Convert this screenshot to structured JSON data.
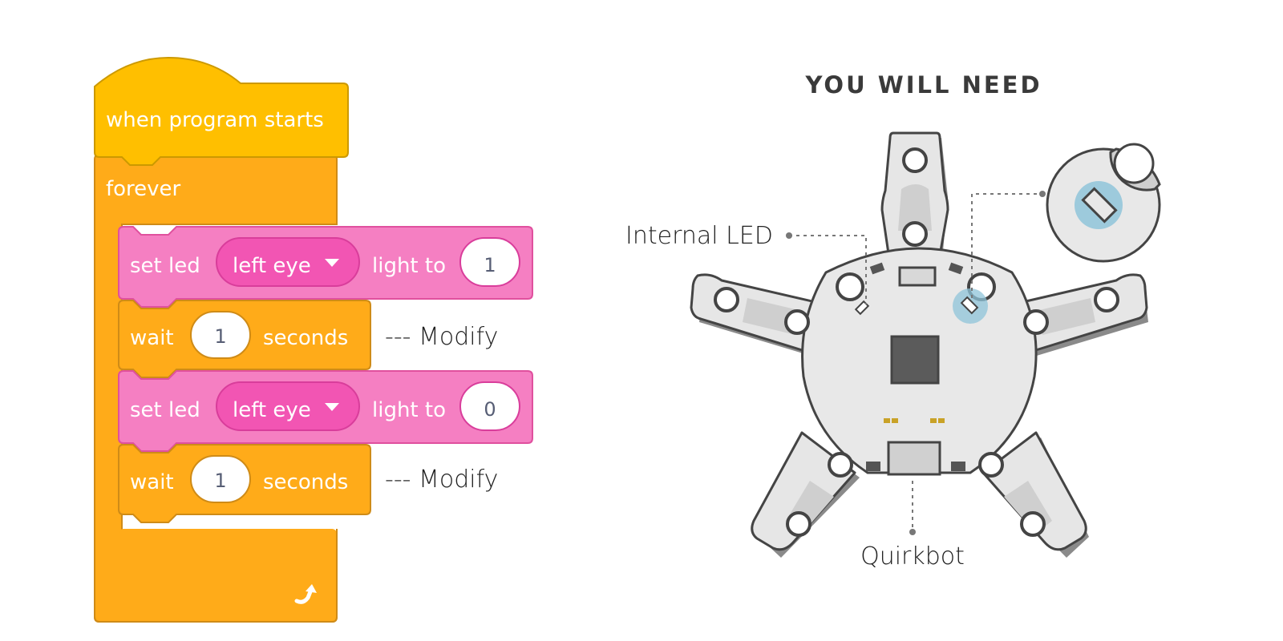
{
  "blocks": {
    "hat": {
      "label": "when program starts",
      "color": "#ffbf00"
    },
    "forever": {
      "label": "forever",
      "color": "#ffab19"
    },
    "set_led_1": {
      "label": "set led",
      "dropdown": "left eye",
      "suffix": "light to",
      "value": "1",
      "color": "#ff66ba"
    },
    "wait_1": {
      "label": "wait",
      "value": "1",
      "suffix": "seconds",
      "note": "--- Modify"
    },
    "set_led_2": {
      "label": "set led",
      "dropdown": "left eye",
      "suffix": "light to",
      "value": "0"
    },
    "wait_2": {
      "label": "wait",
      "value": "1",
      "suffix": "seconds",
      "note": "--- Modify"
    }
  },
  "panel": {
    "title": "YOU WILL NEED",
    "internal_led_label": "Internal LED",
    "board_label": "Quirkbot"
  },
  "icons": {
    "loop_arrow": "loop-arrow-icon",
    "dropdown_caret": "chevron-down-icon"
  }
}
